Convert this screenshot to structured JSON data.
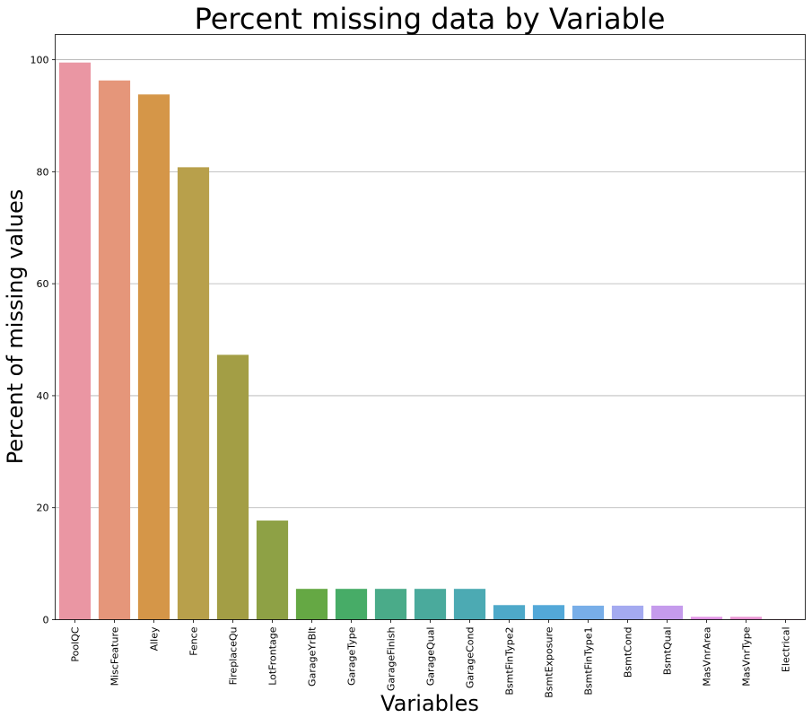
{
  "chart_data": {
    "type": "bar",
    "title": "Percent missing data by Variable",
    "xlabel": "Variables",
    "ylabel": "Percent of missing values",
    "ylim": [
      0,
      104.5
    ],
    "yticks": [
      0,
      20,
      40,
      60,
      80,
      100
    ],
    "grid": "y-major",
    "categories": [
      "PoolQC",
      "MiscFeature",
      "Alley",
      "Fence",
      "FireplaceQu",
      "LotFrontage",
      "GarageYrBlt",
      "GarageType",
      "GarageFinish",
      "GarageQual",
      "GarageCond",
      "BsmtFinType2",
      "BsmtExposure",
      "BsmtFinType1",
      "BsmtCond",
      "BsmtQual",
      "MasVnrArea",
      "MasVnrType",
      "Electrical"
    ],
    "values": [
      99.5,
      96.3,
      93.8,
      80.8,
      47.3,
      17.7,
      5.5,
      5.5,
      5.5,
      5.5,
      5.5,
      2.6,
      2.6,
      2.5,
      2.5,
      2.5,
      0.5,
      0.5,
      0.1
    ],
    "colors": [
      "#ea96a3",
      "#e5967a",
      "#d59648",
      "#b8a04b",
      "#a39e45",
      "#8ea145",
      "#65a844",
      "#47ac67",
      "#4aab89",
      "#4aaa9c",
      "#4caab3",
      "#4ea9c9",
      "#53a8d8",
      "#78aee8",
      "#a4aaf0",
      "#c59bec",
      "#e194e5",
      "#e894d2",
      "#ea95bd"
    ]
  }
}
